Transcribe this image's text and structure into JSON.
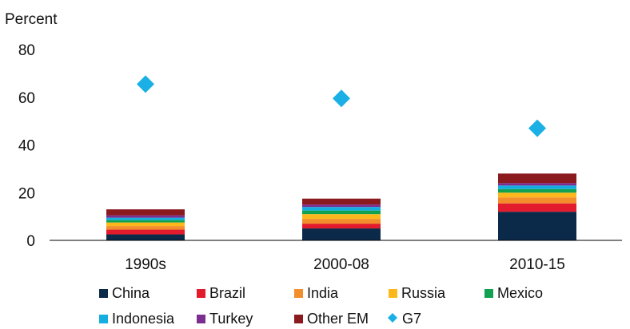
{
  "chart_data": {
    "type": "bar",
    "stacked": true,
    "y_unit_label": "Percent",
    "ylim": [
      0,
      80
    ],
    "yticks": [
      "0",
      "20",
      "40",
      "60",
      "80"
    ],
    "categories": [
      "1990s",
      "2000-08",
      "2010-15"
    ],
    "grid": false,
    "legend_position": "bottom",
    "series": [
      {
        "name": "China",
        "color": "#0b2a4a",
        "values": [
          2.5,
          5,
          12
        ]
      },
      {
        "name": "Brazil",
        "color": "#e31c2d",
        "values": [
          2,
          2,
          3.5
        ]
      },
      {
        "name": "India",
        "color": "#f28e2b",
        "values": [
          1.5,
          2,
          2.5
        ]
      },
      {
        "name": "Russia",
        "color": "#ffb81c",
        "values": [
          1.5,
          2,
          2
        ]
      },
      {
        "name": "Mexico",
        "color": "#12a150",
        "values": [
          1,
          1.5,
          1.5
        ]
      },
      {
        "name": "Indonesia",
        "color": "#14aee0",
        "values": [
          1,
          1.5,
          1.5
        ]
      },
      {
        "name": "Turkey",
        "color": "#7b2e8f",
        "values": [
          1,
          1,
          1
        ]
      },
      {
        "name": "Other EM",
        "color": "#8b1a1f",
        "values": [
          2.5,
          2.5,
          4
        ]
      }
    ],
    "markers": {
      "name": "G7",
      "shape": "diamond",
      "color": "#1ab0e6",
      "values": [
        65.5,
        59.5,
        47
      ]
    }
  }
}
